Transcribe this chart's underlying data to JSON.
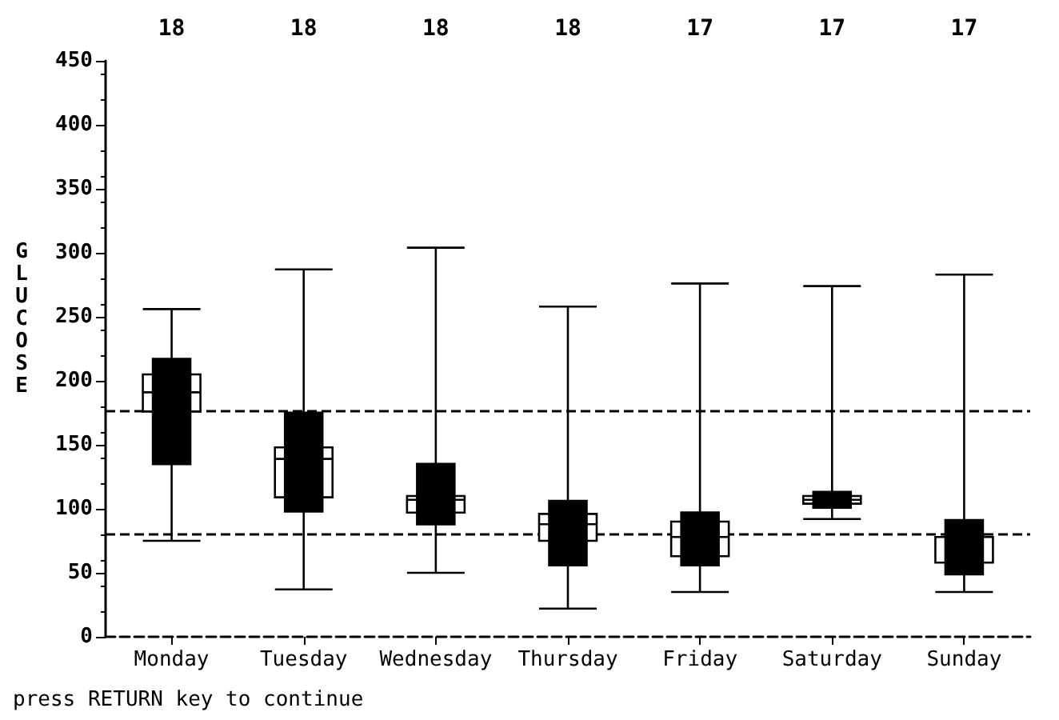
{
  "chart_data": {
    "type": "box",
    "ylabel": "GLUCOSE",
    "categories": [
      "Monday",
      "Tuesday",
      "Wednesday",
      "Thursday",
      "Friday",
      "Saturday",
      "Sunday"
    ],
    "ylim": [
      0,
      450
    ],
    "yticks": [
      0,
      50,
      100,
      150,
      200,
      250,
      300,
      350,
      400,
      450
    ],
    "grid": false,
    "series": [
      {
        "color": "#ffffff",
        "boxes": [
          {
            "low": 75,
            "q1": 176,
            "median": 191,
            "q3": 205,
            "high": 256
          },
          {
            "low": 37,
            "q1": 109,
            "median": 139,
            "q3": 148,
            "high": 287
          },
          {
            "low": 50,
            "q1": 97,
            "median": 107,
            "q3": 110,
            "high": 304
          },
          {
            "low": 22,
            "q1": 75,
            "median": 88,
            "q3": 96,
            "high": 258
          },
          {
            "low": 35,
            "q1": 63,
            "median": 78,
            "q3": 90,
            "high": 276
          },
          {
            "low": 92,
            "q1": 104,
            "median": 107,
            "q3": 110,
            "high": 274
          },
          {
            "low": 35,
            "q1": 58,
            "median": 78,
            "q3": 78,
            "high": 283
          }
        ]
      },
      {
        "type": "bar",
        "color": "#000000",
        "base": [
          134,
          97,
          87,
          55,
          55,
          100,
          48
        ],
        "values": [
          84,
          79,
          49,
          52,
          43,
          14,
          44
        ]
      }
    ],
    "ref_lines": [
      {
        "axis": "y",
        "value": 176,
        "line_style": "dashed"
      },
      {
        "axis": "y",
        "value": 80,
        "line_style": "dashed"
      }
    ],
    "annotations": [
      "18",
      "18",
      "18",
      "18",
      "17",
      "17",
      "17",
      "press RETURN key to continue"
    ]
  }
}
